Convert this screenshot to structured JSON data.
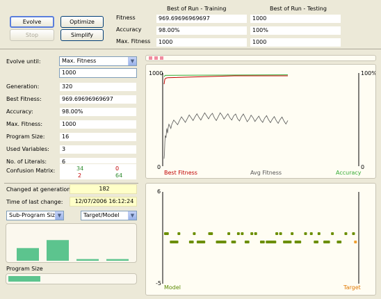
{
  "toolbar": {
    "evolve_label": "Evolve",
    "stop_label": "Stop",
    "optimize_label": "Optimize",
    "simplify_label": "Simplify"
  },
  "best_of_run": {
    "training_header": "Best of Run - Training",
    "testing_header": "Best of Run - Testing",
    "rows": [
      {
        "label": "Fitness",
        "training": "969.69696969697",
        "testing": "1000"
      },
      {
        "label": "Accuracy",
        "training": "98.00%",
        "testing": "100%"
      },
      {
        "label": "Max. Fitness",
        "training": "1000",
        "testing": "1000"
      }
    ]
  },
  "settings": {
    "evolve_until_label": "Evolve until:",
    "evolve_until_value": "Max. Fitness",
    "evolve_until_target": "1000"
  },
  "stats": [
    {
      "label": "Generation:",
      "value": "320"
    },
    {
      "label": "Best Fitness:",
      "value": "969.69696969697"
    },
    {
      "label": "Accuracy:",
      "value": "98.00%"
    },
    {
      "label": "Max. Fitness:",
      "value": "1000"
    },
    {
      "label": "Program Size:",
      "value": "16"
    },
    {
      "label": "Used Variables:",
      "value": "3"
    },
    {
      "label": "No. of Literals:",
      "value": "6"
    }
  ],
  "confusion_matrix": {
    "label": "Confusion Matrix:",
    "tp": "34",
    "fp": "0",
    "fn": "2",
    "tn": "64",
    "colors": {
      "true": "#2e8b2e",
      "false": "#c00000"
    }
  },
  "change_info": {
    "changed_label": "Changed at generation:",
    "changed_value": "182",
    "time_label": "Time of last change:",
    "time_value": "12/07/2006 16:12:24"
  },
  "sub_program": {
    "select_value": "Sub-Program Sizes",
    "target_select_value": "Target/Model",
    "bar_values": [
      0.38,
      0.62,
      0.05,
      0.05
    ],
    "bar_color": "#5cc48e",
    "program_size_label": "Program Size",
    "program_size_fraction": 0.25
  },
  "progress": {
    "markers": 3,
    "marker_color": "#f08ca0"
  },
  "chart_data": [
    {
      "type": "line",
      "y_left_top": "1000",
      "y_left_bottom": "0",
      "y_right_top": "100%",
      "y_right_bottom": "0",
      "ylim": [
        0,
        1000
      ],
      "xlim": [
        0,
        320
      ],
      "legend": [
        "Best Fitness",
        "Avg Fitness",
        "Accuracy"
      ],
      "legend_colors": [
        "#c00000",
        "#555555",
        "#33aa33"
      ],
      "series": [
        {
          "name": "Best Fitness",
          "x": [
            0,
            2,
            5,
            10,
            182,
            320
          ],
          "values": [
            880,
            935,
            945,
            950,
            970,
            970
          ]
        },
        {
          "name": "Accuracy",
          "x": [
            0,
            3,
            320
          ],
          "values": [
            960,
            975,
            980
          ]
        },
        {
          "name": "Avg Fitness",
          "x": [
            0,
            2,
            4,
            6,
            8,
            10,
            15,
            20,
            30,
            40,
            50,
            60,
            70,
            80,
            90,
            100,
            110,
            120,
            130,
            140,
            150,
            160,
            170,
            180,
            190,
            200,
            210,
            220,
            230,
            240,
            250,
            260,
            270,
            280,
            290,
            300,
            310,
            320
          ],
          "values": [
            80,
            260,
            320,
            360,
            380,
            400,
            430,
            450,
            470,
            490,
            500,
            510,
            520,
            530,
            525,
            535,
            540,
            545,
            520,
            530,
            545,
            535,
            520,
            540,
            510,
            530,
            520,
            505,
            520,
            510,
            495,
            515,
            500,
            505,
            490,
            500,
            485,
            490
          ]
        }
      ]
    },
    {
      "type": "scatter",
      "y_top": "6",
      "y_bottom": "-5",
      "ylim": [
        -5,
        6
      ],
      "legend": [
        "Model",
        "Target"
      ],
      "legend_colors": [
        "#5a8a00",
        "#e07800"
      ],
      "point_color": "#6b8e00",
      "target_color": "#f0a030",
      "upper_value": 1,
      "lower_value": 0,
      "upper_x": [
        0,
        1,
        7,
        15,
        23,
        24,
        33,
        38,
        40,
        45,
        47,
        58,
        60,
        66,
        73,
        76,
        80,
        87,
        94,
        98
      ],
      "lower_x": [
        3,
        4,
        5,
        6,
        13,
        14,
        17,
        18,
        19,
        20,
        27,
        28,
        29,
        30,
        31,
        35,
        36,
        42,
        43,
        50,
        51,
        53,
        54,
        55,
        56,
        57,
        62,
        63,
        64,
        65,
        68,
        69,
        70,
        78,
        79,
        83,
        84,
        85,
        90,
        91,
        99
      ]
    }
  ]
}
